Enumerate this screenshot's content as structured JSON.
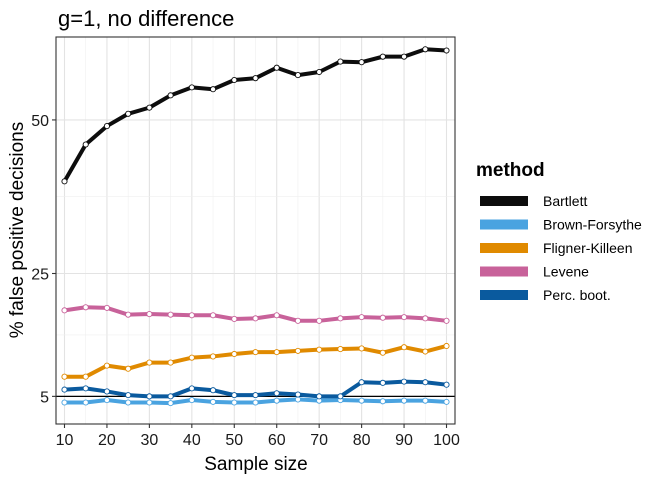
{
  "chart_data": {
    "type": "line",
    "title": "g=1, no difference",
    "xlabel": "Sample size",
    "ylabel": "% false positive decisions",
    "xlim": [
      8,
      102
    ],
    "ylim": [
      0.5,
      63.5
    ],
    "x_ticks": [
      10,
      20,
      30,
      40,
      50,
      60,
      70,
      80,
      90,
      100
    ],
    "y_ticks": [
      5,
      25,
      50
    ],
    "reference_line_y": 5,
    "grid": true,
    "legend": {
      "title": "method",
      "position": "right"
    },
    "x": [
      10,
      15,
      20,
      25,
      30,
      35,
      40,
      45,
      50,
      55,
      60,
      65,
      70,
      75,
      80,
      85,
      90,
      95,
      100
    ],
    "series": [
      {
        "name": "Bartlett",
        "color": "#0d0d0d",
        "values": [
          40.0,
          46.0,
          49.0,
          51.0,
          52.0,
          54.0,
          55.3,
          55.0,
          56.5,
          56.8,
          58.5,
          57.3,
          57.8,
          59.5,
          59.4,
          60.3,
          60.3,
          61.5,
          61.3
        ]
      },
      {
        "name": "Brown-Forsythe",
        "color": "#4aa3e0",
        "values": [
          4.0,
          4.0,
          4.4,
          4.0,
          4.0,
          3.9,
          4.4,
          4.1,
          4.0,
          4.0,
          4.3,
          4.5,
          4.3,
          4.4,
          4.3,
          4.2,
          4.3,
          4.3,
          4.1
        ]
      },
      {
        "name": "Fligner-Killeen",
        "color": "#e08a00",
        "values": [
          8.2,
          8.2,
          10.0,
          9.5,
          10.5,
          10.5,
          11.3,
          11.5,
          11.9,
          12.2,
          12.2,
          12.4,
          12.6,
          12.7,
          12.8,
          12.1,
          13.0,
          12.3,
          13.2
        ]
      },
      {
        "name": "Levene",
        "color": "#c8629a",
        "values": [
          19.0,
          19.5,
          19.4,
          18.3,
          18.4,
          18.3,
          18.2,
          18.2,
          17.6,
          17.7,
          18.2,
          17.3,
          17.3,
          17.7,
          17.9,
          17.8,
          17.9,
          17.7,
          17.3
        ]
      },
      {
        "name": "Perc. boot.",
        "color": "#0a5a9e",
        "values": [
          6.1,
          6.3,
          5.8,
          5.2,
          5.0,
          5.0,
          6.3,
          6.0,
          5.2,
          5.2,
          5.5,
          5.3,
          5.0,
          5.0,
          7.3,
          7.2,
          7.4,
          7.3,
          6.9
        ]
      }
    ]
  }
}
